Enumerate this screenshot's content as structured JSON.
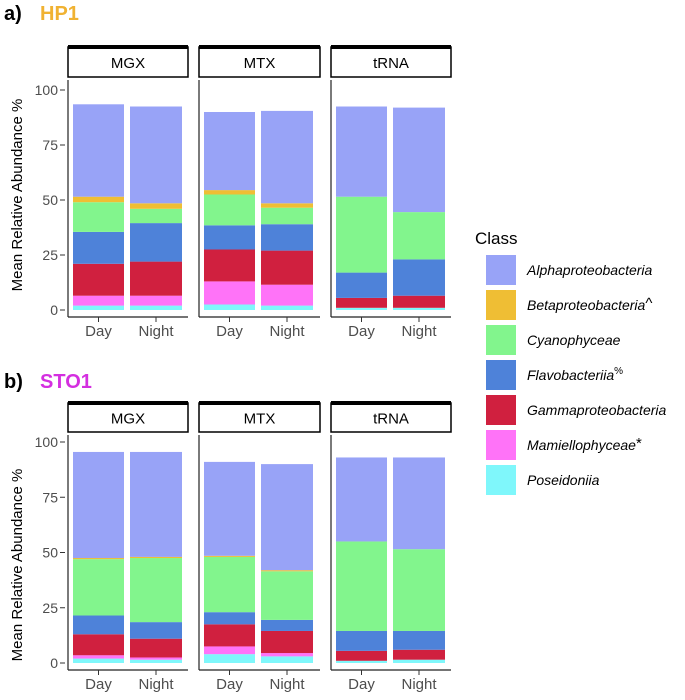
{
  "chart_data": [
    {
      "type": "bar",
      "stacked": true,
      "panel_tag": "a)",
      "title": "HP1",
      "title_color": "#f0b232",
      "ylabel": "Mean Relative Abundance %",
      "ylim": [
        0,
        100
      ],
      "yticks": [
        0,
        25,
        50,
        75,
        100
      ],
      "facets": [
        {
          "label": "MGX",
          "bars": [
            {
              "category": "Day",
              "values": [
                42.0,
                2.5,
                13.5,
                14.5,
                14.5,
                4.5,
                2.0
              ]
            },
            {
              "category": "Night",
              "values": [
                44.0,
                2.5,
                6.5,
                17.5,
                15.5,
                4.5,
                2.0
              ]
            }
          ]
        },
        {
          "label": "MTX",
          "bars": [
            {
              "category": "Day",
              "values": [
                35.5,
                2.0,
                14.0,
                11.0,
                14.5,
                10.5,
                2.5
              ]
            },
            {
              "category": "Night",
              "values": [
                42.0,
                2.0,
                7.5,
                12.0,
                15.5,
                9.5,
                2.0
              ]
            }
          ]
        },
        {
          "label": "tRNA",
          "bars": [
            {
              "category": "Day",
              "values": [
                41.0,
                0.0,
                34.5,
                11.5,
                4.5,
                0.0,
                1.0
              ]
            },
            {
              "category": "Night",
              "values": [
                47.5,
                0.0,
                21.5,
                16.5,
                5.5,
                0.0,
                1.0
              ]
            }
          ]
        }
      ]
    },
    {
      "type": "bar",
      "stacked": true,
      "panel_tag": "b)",
      "title": "STO1",
      "title_color": "#d42fe0",
      "ylabel": "Mean Relative Abundance %",
      "ylim": [
        0,
        100
      ],
      "yticks": [
        0,
        25,
        50,
        75,
        100
      ],
      "facets": [
        {
          "label": "MGX",
          "bars": [
            {
              "category": "Day",
              "values": [
                48.0,
                0.5,
                25.5,
                8.5,
                9.5,
                1.5,
                2.0
              ]
            },
            {
              "category": "Night",
              "values": [
                47.5,
                0.5,
                29.0,
                7.5,
                8.5,
                1.0,
                1.5
              ]
            }
          ]
        },
        {
          "label": "MTX",
          "bars": [
            {
              "category": "Day",
              "values": [
                42.5,
                0.5,
                25.0,
                5.5,
                10.0,
                3.5,
                4.0
              ]
            },
            {
              "category": "Night",
              "values": [
                48.0,
                0.5,
                22.0,
                5.0,
                10.0,
                1.5,
                3.0
              ]
            }
          ]
        },
        {
          "label": "tRNA",
          "bars": [
            {
              "category": "Day",
              "values": [
                38.0,
                0.0,
                40.5,
                9.0,
                4.5,
                0.0,
                1.0
              ]
            },
            {
              "category": "Night",
              "values": [
                41.5,
                0.0,
                37.0,
                8.5,
                4.5,
                0.0,
                1.5
              ]
            }
          ]
        }
      ]
    }
  ],
  "legend": {
    "title": "Class",
    "placement": "right",
    "items": [
      {
        "name": "Alphaproteobacteria",
        "mark": "",
        "color": "#98a3f7"
      },
      {
        "name": "Betaproteobacteria",
        "mark": "^",
        "color": "#efbe34"
      },
      {
        "name": "Cyanophyceae",
        "mark": "",
        "color": "#82f58d"
      },
      {
        "name": "Flavobacteriia",
        "mark": "%",
        "color": "#4e82d9"
      },
      {
        "name": "Gammaproteobacteria",
        "mark": "",
        "color": "#d0203f"
      },
      {
        "name": "Mamiellophyceae",
        "mark": "*",
        "color": "#ff73f8"
      },
      {
        "name": "Poseidoniia",
        "mark": "",
        "color": "#7ff7fb"
      }
    ]
  }
}
